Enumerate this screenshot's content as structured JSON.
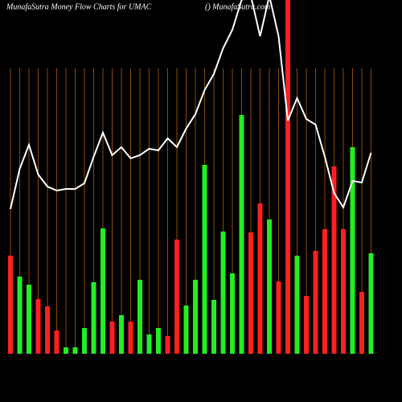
{
  "chart_data": {
    "type": "bar",
    "title": "MunafaSutra  Money Flow  Charts for UMAC",
    "subtitle": "() MunafaSutra.com",
    "ylim": [
      0,
      440
    ],
    "values": [
      122,
      96,
      86,
      68,
      59,
      29,
      8,
      8,
      32,
      89,
      156,
      40,
      48,
      40,
      92,
      24,
      32,
      22,
      142,
      60,
      92,
      235,
      67,
      152,
      100,
      297,
      151,
      187,
      167,
      90,
      440,
      122,
      72,
      128,
      155,
      233,
      155,
      257,
      77,
      125
    ],
    "colors": [
      "#ff2020",
      "#22ee22",
      "#22ee22",
      "#ff2020",
      "#ff2020",
      "#ff2020",
      "#22ee22",
      "#22ee22",
      "#22ee22",
      "#22ee22",
      "#22ee22",
      "#ff2020",
      "#22ee22",
      "#ff2020",
      "#22ee22",
      "#22ee22",
      "#22ee22",
      "#ff2020",
      "#ff2020",
      "#22ee22",
      "#22ee22",
      "#22ee22",
      "#22ee22",
      "#22ee22",
      "#22ee22",
      "#22ee22",
      "#ff2020",
      "#ff2020",
      "#22ee22",
      "#ff2020",
      "#ff2020",
      "#22ee22",
      "#ff2020",
      "#ff2020",
      "#ff2020",
      "#ff2020",
      "#ff2020",
      "#22ee22",
      "#ff2020",
      "#22ee22"
    ],
    "line": {
      "color": "#ffffff",
      "values": [
        180,
        230,
        260,
        223,
        208,
        203,
        205,
        205,
        212,
        245,
        275,
        247,
        257,
        243,
        247,
        255,
        253,
        268,
        257,
        280,
        298,
        328,
        348,
        380,
        403,
        440,
        445,
        395,
        445,
        395,
        290,
        318,
        292,
        285,
        245,
        200,
        182,
        215,
        213,
        250
      ]
    },
    "grid_color": "#8b4a0a"
  }
}
